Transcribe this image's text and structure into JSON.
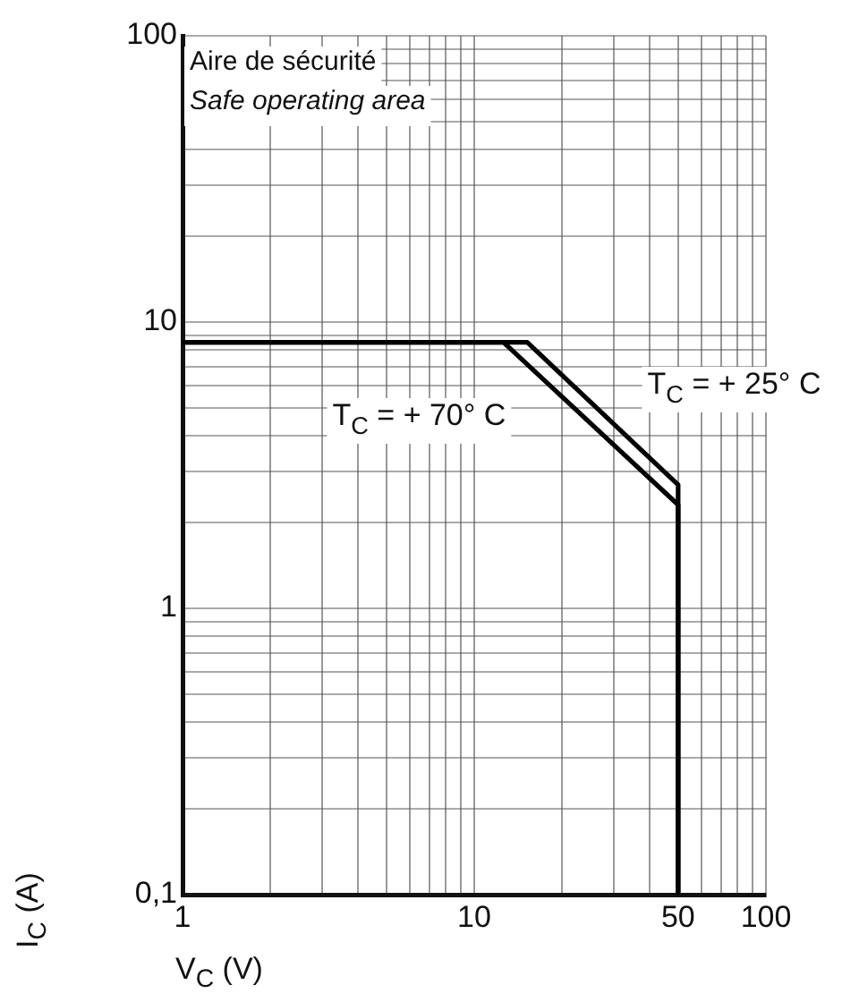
{
  "chart_data": {
    "type": "line",
    "title": "Aire de sécurité",
    "subtitle": "Safe operating area",
    "xlabel": "V$_{C}$ (V)",
    "ylabel": "I$_{C}$ (A)",
    "series": [
      {
        "name": "T$_{C}$ = + 25° C",
        "x": [
          1,
          15.2,
          50,
          50
        ],
        "values": [
          8.5,
          8.5,
          2.7,
          0.1
        ],
        "color": "#000000"
      },
      {
        "name": "T$_{C}$ = + 70° C",
        "x": [
          1,
          12.6,
          50,
          50
        ],
        "values": [
          8.5,
          8.5,
          2.3,
          0.1
        ],
        "color": "#000000"
      }
    ],
    "log": "xy",
    "xlim": [
      1,
      100
    ],
    "ylim": [
      0.1,
      100
    ],
    "xticks": [
      1,
      {
        "value": 2,
        "label": null
      },
      {
        "value": 3,
        "label": null
      },
      {
        "value": 4,
        "label": null
      },
      {
        "value": 5,
        "label": null
      },
      {
        "value": 6,
        "label": null
      },
      {
        "value": 7,
        "label": null
      },
      {
        "value": 8,
        "label": null
      },
      {
        "value": 9,
        "label": null
      },
      10,
      {
        "value": 20,
        "label": null
      },
      {
        "value": 30,
        "label": null
      },
      {
        "value": 40,
        "label": null
      },
      50,
      {
        "value": 60,
        "label": null
      },
      {
        "value": 70,
        "label": null
      },
      {
        "value": 80,
        "label": null
      },
      {
        "value": 90,
        "label": null
      },
      100
    ],
    "yticks": [
      {
        "value": 0.1,
        "label": "0,1"
      },
      {
        "value": 0.2,
        "label": null
      },
      {
        "value": 0.3,
        "label": null
      },
      {
        "value": 0.4,
        "label": null
      },
      {
        "value": 0.5,
        "label": null
      },
      {
        "value": 0.6,
        "label": null
      },
      {
        "value": 0.7,
        "label": null
      },
      {
        "value": 0.8,
        "label": null
      },
      {
        "value": 0.9,
        "label": null
      },
      1,
      {
        "value": 2,
        "label": null
      },
      {
        "value": 3,
        "label": null
      },
      {
        "value": 4,
        "label": null
      },
      {
        "value": 5,
        "label": null
      },
      {
        "value": 6,
        "label": null
      },
      {
        "value": 7,
        "label": null
      },
      {
        "value": 8,
        "label": null
      },
      {
        "value": 9,
        "label": null
      },
      10,
      {
        "value": 20,
        "label": null
      },
      {
        "value": 30,
        "label": null
      },
      {
        "value": 40,
        "label": null
      },
      {
        "value": 50,
        "label": null
      },
      {
        "value": 60,
        "label": null
      },
      {
        "value": 70,
        "label": null
      },
      {
        "value": 80,
        "label": null
      },
      {
        "value": 90,
        "label": null
      },
      100
    ],
    "grid": true,
    "legend": false,
    "line_style": "solid",
    "marker": "none"
  }
}
